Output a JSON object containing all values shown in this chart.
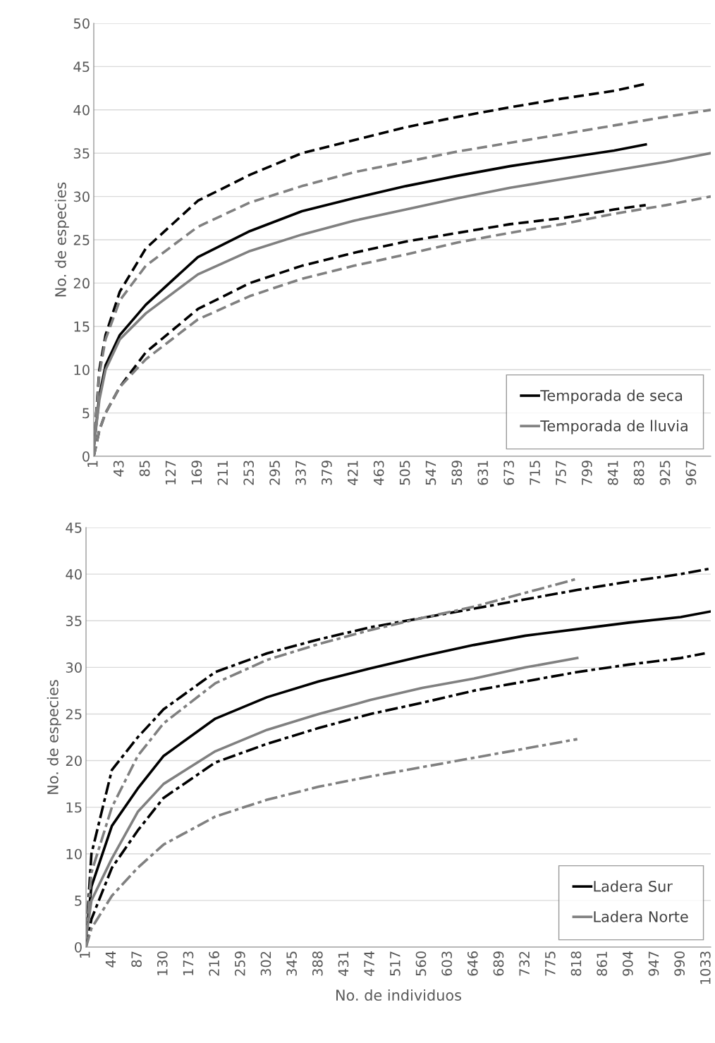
{
  "chart_data": [
    {
      "type": "line",
      "ylabel": "No. de especies",
      "xlim": [
        1,
        997
      ],
      "ylim": [
        0,
        50
      ],
      "yticks": [
        0,
        5,
        10,
        15,
        20,
        25,
        30,
        35,
        40,
        45,
        50
      ],
      "xticks": [
        1,
        43,
        85,
        127,
        169,
        211,
        253,
        295,
        337,
        379,
        421,
        463,
        505,
        547,
        589,
        631,
        673,
        715,
        757,
        799,
        841,
        883,
        925,
        967
      ],
      "grid": "y",
      "legend": "lower right",
      "marker": "none",
      "series": [
        {
          "name": "Temporada de seca",
          "color": "#000000",
          "line_style": "solid",
          "x": [
            1,
            10,
            20,
            43,
            85,
            169,
            253,
            337,
            421,
            505,
            589,
            673,
            757,
            841,
            892
          ],
          "values": [
            1,
            7,
            10.5,
            14,
            17.5,
            23,
            26,
            28.3,
            29.8,
            31.2,
            32.4,
            33.5,
            34.4,
            35.3,
            36
          ]
        },
        {
          "color": "#000000",
          "line_style": "dashed",
          "x": [
            1,
            10,
            20,
            43,
            85,
            169,
            253,
            337,
            421,
            505,
            589,
            673,
            757,
            841,
            892
          ],
          "values": [
            1,
            10,
            14,
            19,
            24,
            29.5,
            32.5,
            35,
            36.5,
            38,
            39.2,
            40.3,
            41.3,
            42.2,
            43
          ]
        },
        {
          "color": "#000000",
          "line_style": "dashed",
          "x": [
            1,
            10,
            20,
            43,
            85,
            169,
            253,
            337,
            421,
            505,
            589,
            673,
            757,
            841,
            892
          ],
          "values": [
            0,
            3,
            5,
            8,
            12,
            17,
            20,
            22,
            23.5,
            24.8,
            25.8,
            26.8,
            27.5,
            28.5,
            29
          ]
        },
        {
          "name": "Temporada de lluvia",
          "color": "#808080",
          "line_style": "solid",
          "x": [
            1,
            10,
            20,
            43,
            85,
            169,
            253,
            337,
            421,
            505,
            589,
            673,
            757,
            841,
            925,
            997
          ],
          "values": [
            1,
            6.5,
            10,
            13.5,
            16.5,
            21,
            23.7,
            25.6,
            27.2,
            28.5,
            29.8,
            31,
            32,
            33,
            34,
            35
          ]
        },
        {
          "color": "#808080",
          "line_style": "dashed",
          "x": [
            1,
            10,
            20,
            43,
            85,
            169,
            253,
            337,
            421,
            505,
            589,
            673,
            757,
            841,
            925,
            997
          ],
          "values": [
            1,
            9.5,
            13.5,
            18,
            22,
            26.5,
            29.3,
            31.2,
            32.8,
            34,
            35.2,
            36.2,
            37.2,
            38.2,
            39.2,
            40
          ]
        },
        {
          "color": "#808080",
          "line_style": "dashed",
          "x": [
            1,
            10,
            20,
            43,
            85,
            169,
            253,
            337,
            421,
            505,
            589,
            673,
            757,
            841,
            925,
            997
          ],
          "values": [
            0,
            3,
            5,
            8,
            11.2,
            15.8,
            18.5,
            20.5,
            22,
            23.3,
            24.7,
            25.8,
            26.8,
            28,
            29,
            30
          ]
        }
      ]
    },
    {
      "type": "line",
      "xlabel": "No. de individuos",
      "ylabel": "No. de especies",
      "xlim": [
        1,
        1040
      ],
      "ylim": [
        0,
        45
      ],
      "yticks": [
        0,
        5,
        10,
        15,
        20,
        25,
        30,
        35,
        40,
        45
      ],
      "xticks": [
        1,
        44,
        87,
        130,
        173,
        216,
        259,
        302,
        345,
        388,
        431,
        474,
        517,
        560,
        603,
        646,
        689,
        732,
        775,
        818,
        861,
        904,
        947,
        990,
        1033
      ],
      "grid": "y",
      "legend": "lower right",
      "marker": "none",
      "series": [
        {
          "name": "Ladera Sur",
          "color": "#000000",
          "line_style": "solid",
          "x": [
            1,
            10,
            44,
            87,
            130,
            216,
            302,
            388,
            474,
            560,
            646,
            732,
            818,
            904,
            990,
            1040
          ],
          "values": [
            1,
            6.5,
            13,
            17,
            20.5,
            24.5,
            26.8,
            28.5,
            29.9,
            31.2,
            32.4,
            33.4,
            34.1,
            34.8,
            35.4,
            36
          ]
        },
        {
          "color": "#000000",
          "line_style": "dashdot",
          "x": [
            1,
            10,
            44,
            87,
            130,
            216,
            302,
            388,
            474,
            560,
            646,
            732,
            818,
            904,
            990,
            1040
          ],
          "values": [
            1,
            10,
            19,
            22.5,
            25.5,
            29.5,
            31.5,
            33,
            34.3,
            35.3,
            36.3,
            37.3,
            38.3,
            39.2,
            40,
            40.6
          ]
        },
        {
          "color": "#000000",
          "line_style": "dashdot",
          "x": [
            1,
            10,
            44,
            87,
            130,
            216,
            302,
            388,
            474,
            560,
            646,
            732,
            818,
            904,
            990,
            1030
          ],
          "values": [
            0,
            3,
            8.5,
            12.5,
            16,
            19.8,
            21.8,
            23.5,
            25,
            26.2,
            27.5,
            28.5,
            29.5,
            30.3,
            31,
            31.5
          ]
        },
        {
          "name": "Ladera Norte",
          "color": "#808080",
          "line_style": "solid",
          "x": [
            1,
            10,
            44,
            87,
            130,
            216,
            302,
            388,
            474,
            560,
            646,
            732,
            818
          ],
          "values": [
            1,
            5,
            9.5,
            14.5,
            17.5,
            21,
            23.3,
            25,
            26.5,
            27.8,
            28.8,
            30,
            31
          ]
        },
        {
          "color": "#808080",
          "line_style": "dashdot",
          "x": [
            1,
            10,
            44,
            87,
            130,
            216,
            302,
            388,
            474,
            560,
            646,
            732,
            818
          ],
          "values": [
            1,
            8,
            15,
            20.5,
            24,
            28.3,
            30.8,
            32.5,
            34,
            35.3,
            36.5,
            38,
            39.5
          ]
        },
        {
          "color": "#808080",
          "line_style": "dashdot",
          "x": [
            1,
            10,
            44,
            87,
            130,
            216,
            302,
            388,
            474,
            560,
            646,
            732,
            818
          ],
          "values": [
            0,
            2,
            5.5,
            8.5,
            11,
            14,
            15.8,
            17.2,
            18.3,
            19.3,
            20.3,
            21.3,
            22.3
          ]
        }
      ]
    }
  ]
}
